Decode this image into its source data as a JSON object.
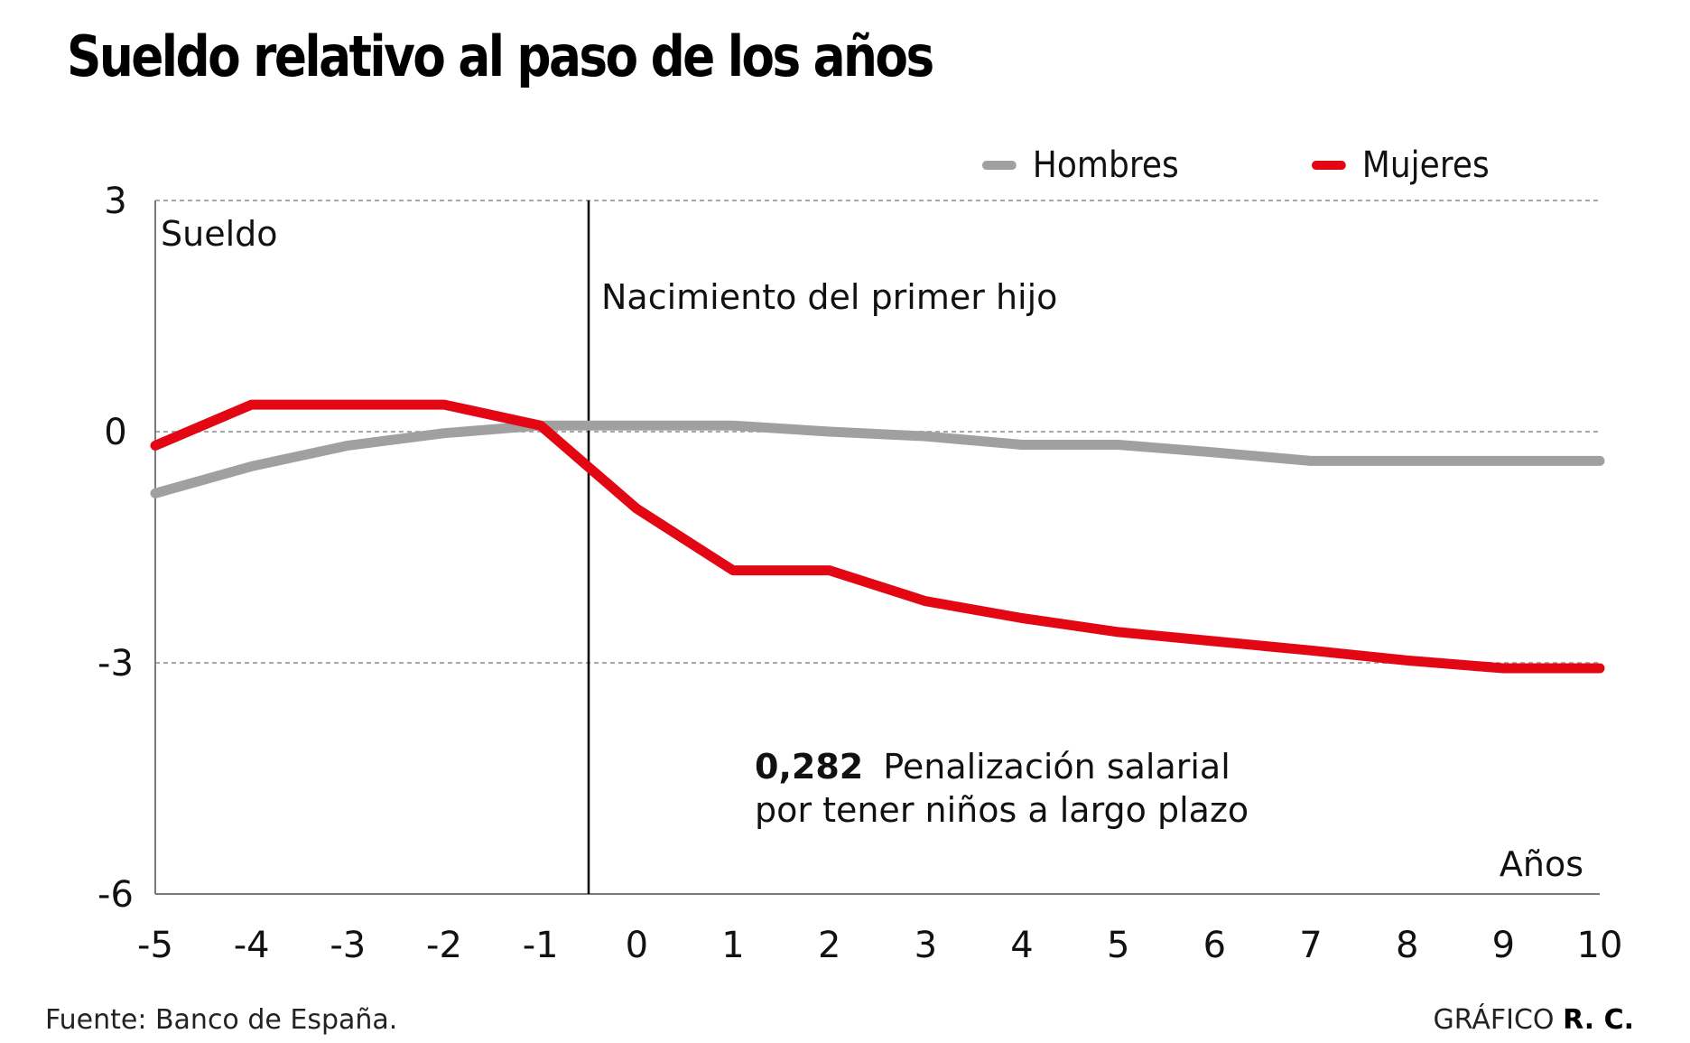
{
  "title": "Sueldo relativo al paso de los años",
  "footer": {
    "source": "Fuente: Banco de España.",
    "credit_prefix": "GRÁFICO",
    "credit_author": "R. C."
  },
  "colors": {
    "hombres": "#a0a0a0",
    "mujeres": "#e30613",
    "grid": "#a8a8a8",
    "axis": "#7a7a7a",
    "event_line": "#000000"
  },
  "chart_data": {
    "type": "line",
    "title": "Sueldo relativo al paso de los años",
    "ylabel": "Sueldo",
    "xlabel": "Años",
    "x": [
      -5,
      -4,
      -3,
      -2,
      -1,
      0,
      1,
      2,
      3,
      4,
      5,
      6,
      7,
      8,
      9,
      10
    ],
    "xticks": [
      "-5",
      "-4",
      "-3",
      "-2",
      "-1",
      "0",
      "1",
      "2",
      "3",
      "4",
      "5",
      "6",
      "7",
      "8",
      "9",
      "10"
    ],
    "yticks": [
      3,
      0,
      -3,
      -6
    ],
    "ytick_labels": [
      "3",
      "0",
      "-3",
      "-6"
    ],
    "xlim": [
      -5,
      10
    ],
    "ylim": [
      -6,
      3
    ],
    "grid": "horizontal-dotted",
    "legend_position": "top-right",
    "series": [
      {
        "name": "Hombres",
        "color": "#a0a0a0",
        "values": [
          -0.8,
          -0.45,
          -0.18,
          -0.02,
          0.08,
          0.08,
          0.08,
          0.0,
          -0.06,
          -0.17,
          -0.17,
          -0.27,
          -0.38,
          -0.38,
          -0.38,
          -0.38
        ]
      },
      {
        "name": "Mujeres",
        "color": "#e30613",
        "values": [
          -0.18,
          0.35,
          0.35,
          0.35,
          0.08,
          -1.0,
          -1.8,
          -1.8,
          -2.2,
          -2.42,
          -2.6,
          -2.72,
          -2.84,
          -2.97,
          -3.07,
          -3.07
        ]
      }
    ],
    "annotations": [
      {
        "id": "event",
        "x": -0.5,
        "text": "Nacimiento del primer hijo"
      },
      {
        "id": "penalty",
        "value_text": "0,282",
        "line1": "Penalización salarial",
        "line2": "por tener niños a largo plazo"
      }
    ]
  }
}
